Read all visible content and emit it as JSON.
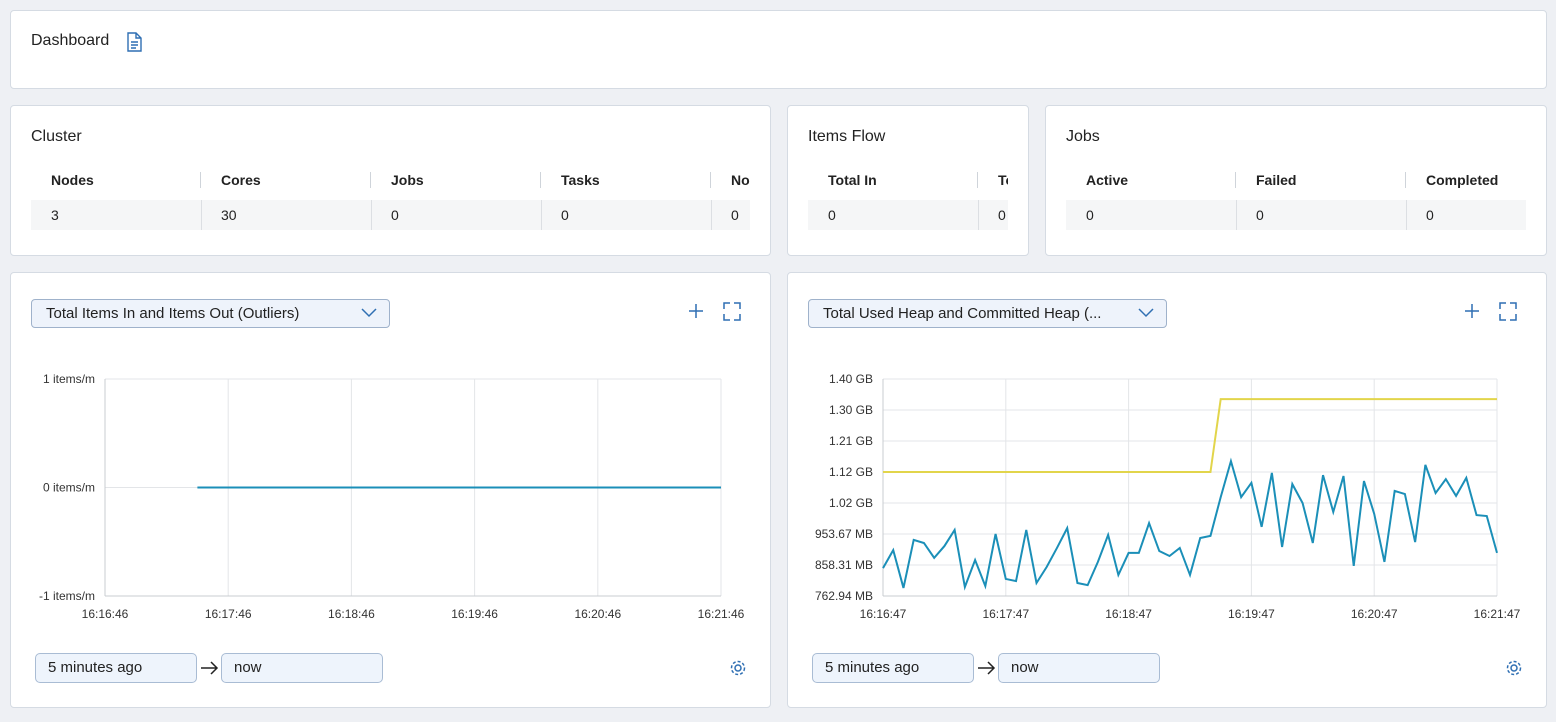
{
  "header": {
    "title": "Dashboard"
  },
  "cluster": {
    "title": "Cluster",
    "columns": [
      "Nodes",
      "Cores",
      "Jobs",
      "Tasks",
      "No"
    ],
    "values": [
      3,
      30,
      0,
      0,
      0
    ]
  },
  "items_flow": {
    "title": "Items Flow",
    "columns": [
      "Total In",
      "To"
    ],
    "values": [
      0,
      0
    ]
  },
  "jobs": {
    "title": "Jobs",
    "columns": [
      "Active",
      "Failed",
      "Completed"
    ],
    "values": [
      0,
      0,
      0
    ]
  },
  "chart_data": [
    {
      "type": "line",
      "title": "Total Items In and Items Out (Outliers)",
      "time_from": "5 minutes ago",
      "time_to": "now",
      "xlim": [
        "16:16:46",
        "16:21:46"
      ],
      "xticks": [
        "16:16:46",
        "16:17:46",
        "16:18:46",
        "16:19:46",
        "16:20:46",
        "16:21:46"
      ],
      "ylim": [
        -1,
        1
      ],
      "yticks": [
        {
          "value": -1,
          "label": "-1 items/m"
        },
        {
          "value": 0,
          "label": "0 items/m"
        },
        {
          "value": 1,
          "label": "1 items/m"
        }
      ],
      "grid": true,
      "series": [
        {
          "color": "#1b8fb8",
          "x": [
            "16:17:31",
            "16:21:46"
          ],
          "values": [
            0,
            0
          ]
        }
      ]
    },
    {
      "type": "line",
      "title": "Total Used Heap and Committed Heap (...",
      "time_from": "5 minutes ago",
      "time_to": "now",
      "xlim": [
        "16:16:47",
        "16:21:47"
      ],
      "xticks": [
        "16:16:47",
        "16:17:47",
        "16:18:47",
        "16:19:47",
        "16:20:47",
        "16:21:47"
      ],
      "ylim": [
        800000000,
        1500000000
      ],
      "yticks": [
        {
          "value": 800000000,
          "label": "762.94 MB"
        },
        {
          "value": 900000000,
          "label": "858.31 MB"
        },
        {
          "value": 1000000000,
          "label": "953.67 MB"
        },
        {
          "value": 1100000000,
          "label": "1.02 GB"
        },
        {
          "value": 1200000000,
          "label": "1.12 GB"
        },
        {
          "value": 1300000000,
          "label": "1.21 GB"
        },
        {
          "value": 1400000000,
          "label": "1.30 GB"
        },
        {
          "value": 1500000000,
          "label": "1.40 GB"
        }
      ],
      "grid": true,
      "series": [
        {
          "color": "#e2d54b",
          "x": [
            "16:16:47",
            "16:19:27",
            "16:19:32",
            "16:21:47"
          ],
          "values": [
            1200000000,
            1200000000,
            1435000000,
            1435000000
          ]
        },
        {
          "color": "#1b8fb8",
          "x": [
            "16:16:47",
            "16:16:52",
            "16:16:57",
            "16:17:02",
            "16:17:07",
            "16:17:12",
            "16:17:17",
            "16:17:22",
            "16:17:27",
            "16:17:32",
            "16:17:37",
            "16:17:42",
            "16:17:47",
            "16:17:52",
            "16:17:57",
            "16:18:02",
            "16:18:07",
            "16:18:12",
            "16:18:17",
            "16:18:22",
            "16:18:27",
            "16:18:32",
            "16:18:37",
            "16:18:42",
            "16:18:47",
            "16:18:52",
            "16:18:57",
            "16:19:02",
            "16:19:07",
            "16:19:12",
            "16:19:17",
            "16:19:22",
            "16:19:27",
            "16:19:32",
            "16:19:37",
            "16:19:42",
            "16:19:47",
            "16:19:52",
            "16:19:57",
            "16:20:02",
            "16:20:07",
            "16:20:12",
            "16:20:17",
            "16:20:22",
            "16:20:27",
            "16:20:32",
            "16:20:37",
            "16:20:42",
            "16:20:47",
            "16:20:52",
            "16:20:57",
            "16:21:02",
            "16:21:07",
            "16:21:12",
            "16:21:17",
            "16:21:22",
            "16:21:27",
            "16:21:32",
            "16:21:37",
            "16:21:42",
            "16:21:47"
          ],
          "values": [
            890000000,
            948000000,
            826000000,
            981000000,
            971000000,
            923000000,
            961000000,
            1013000000,
            829000000,
            916000000,
            832000000,
            1000000000,
            855000000,
            848000000,
            1013000000,
            842000000,
            894000000,
            955000000,
            1019000000,
            842000000,
            835000000,
            910000000,
            997000000,
            868000000,
            939000000,
            939000000,
            1035000000,
            945000000,
            929000000,
            955000000,
            868000000,
            987000000,
            994000000,
            1119000000,
            1235000000,
            1119000000,
            1165000000,
            1023000000,
            1197000000,
            958000000,
            1161000000,
            1100000000,
            971000000,
            1190000000,
            1071000000,
            1187000000,
            897000000,
            1171000000,
            1065000000,
            910000000,
            1139000000,
            1129000000,
            974000000,
            1223000000,
            1132000000,
            1177000000,
            1123000000,
            1181000000,
            1061000000,
            1058000000,
            939000000
          ]
        }
      ]
    }
  ]
}
